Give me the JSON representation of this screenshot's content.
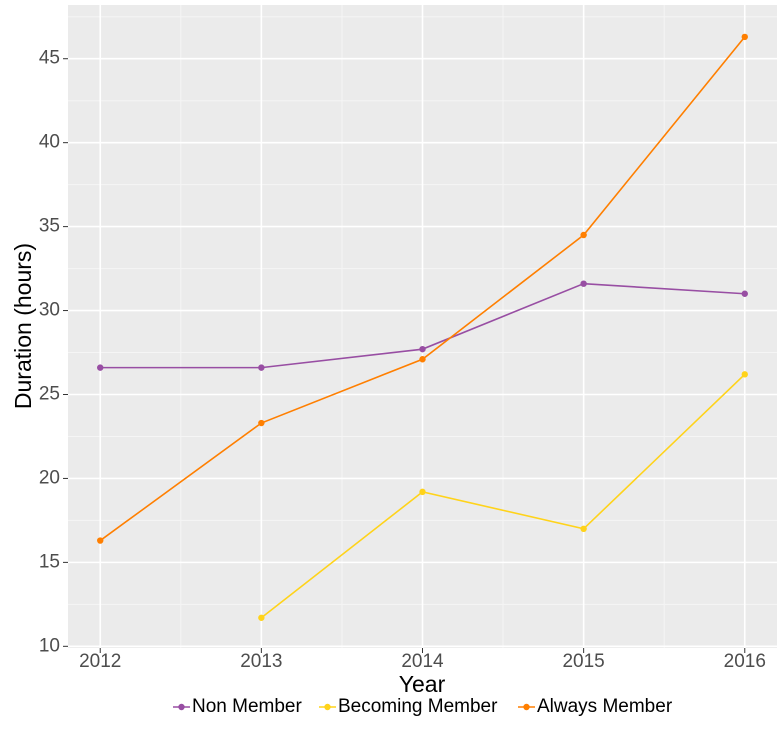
{
  "chart_data": {
    "type": "line",
    "x_label": "Year",
    "y_label": "Duration (hours)",
    "x": [
      2012,
      2013,
      2014,
      2015,
      2016
    ],
    "series": [
      {
        "name": "Non Member",
        "color": "#984ea3",
        "values": [
          26.6,
          26.6,
          27.7,
          31.6,
          31.0
        ]
      },
      {
        "name": "Becoming Member",
        "color": "#ffd31a",
        "values": [
          null,
          11.7,
          19.2,
          17.0,
          26.2
        ]
      },
      {
        "name": "Always Member",
        "color": "#ff7f00",
        "values": [
          16.3,
          23.3,
          27.1,
          34.5,
          46.3
        ]
      }
    ],
    "xlim": [
      2011.8,
      2016.2
    ],
    "xticks": [
      2012,
      2013,
      2014,
      2015,
      2016
    ],
    "xminor": [
      2012.5,
      2013.5,
      2014.5,
      2015.5
    ],
    "ylim": [
      9.9,
      48.2
    ],
    "yticks": [
      10,
      15,
      20,
      25,
      30,
      35,
      40,
      45
    ],
    "yminor": [
      12.5,
      17.5,
      22.5,
      27.5,
      32.5,
      37.5,
      42.5,
      47.5
    ],
    "grid": true,
    "legend": "bottom"
  }
}
